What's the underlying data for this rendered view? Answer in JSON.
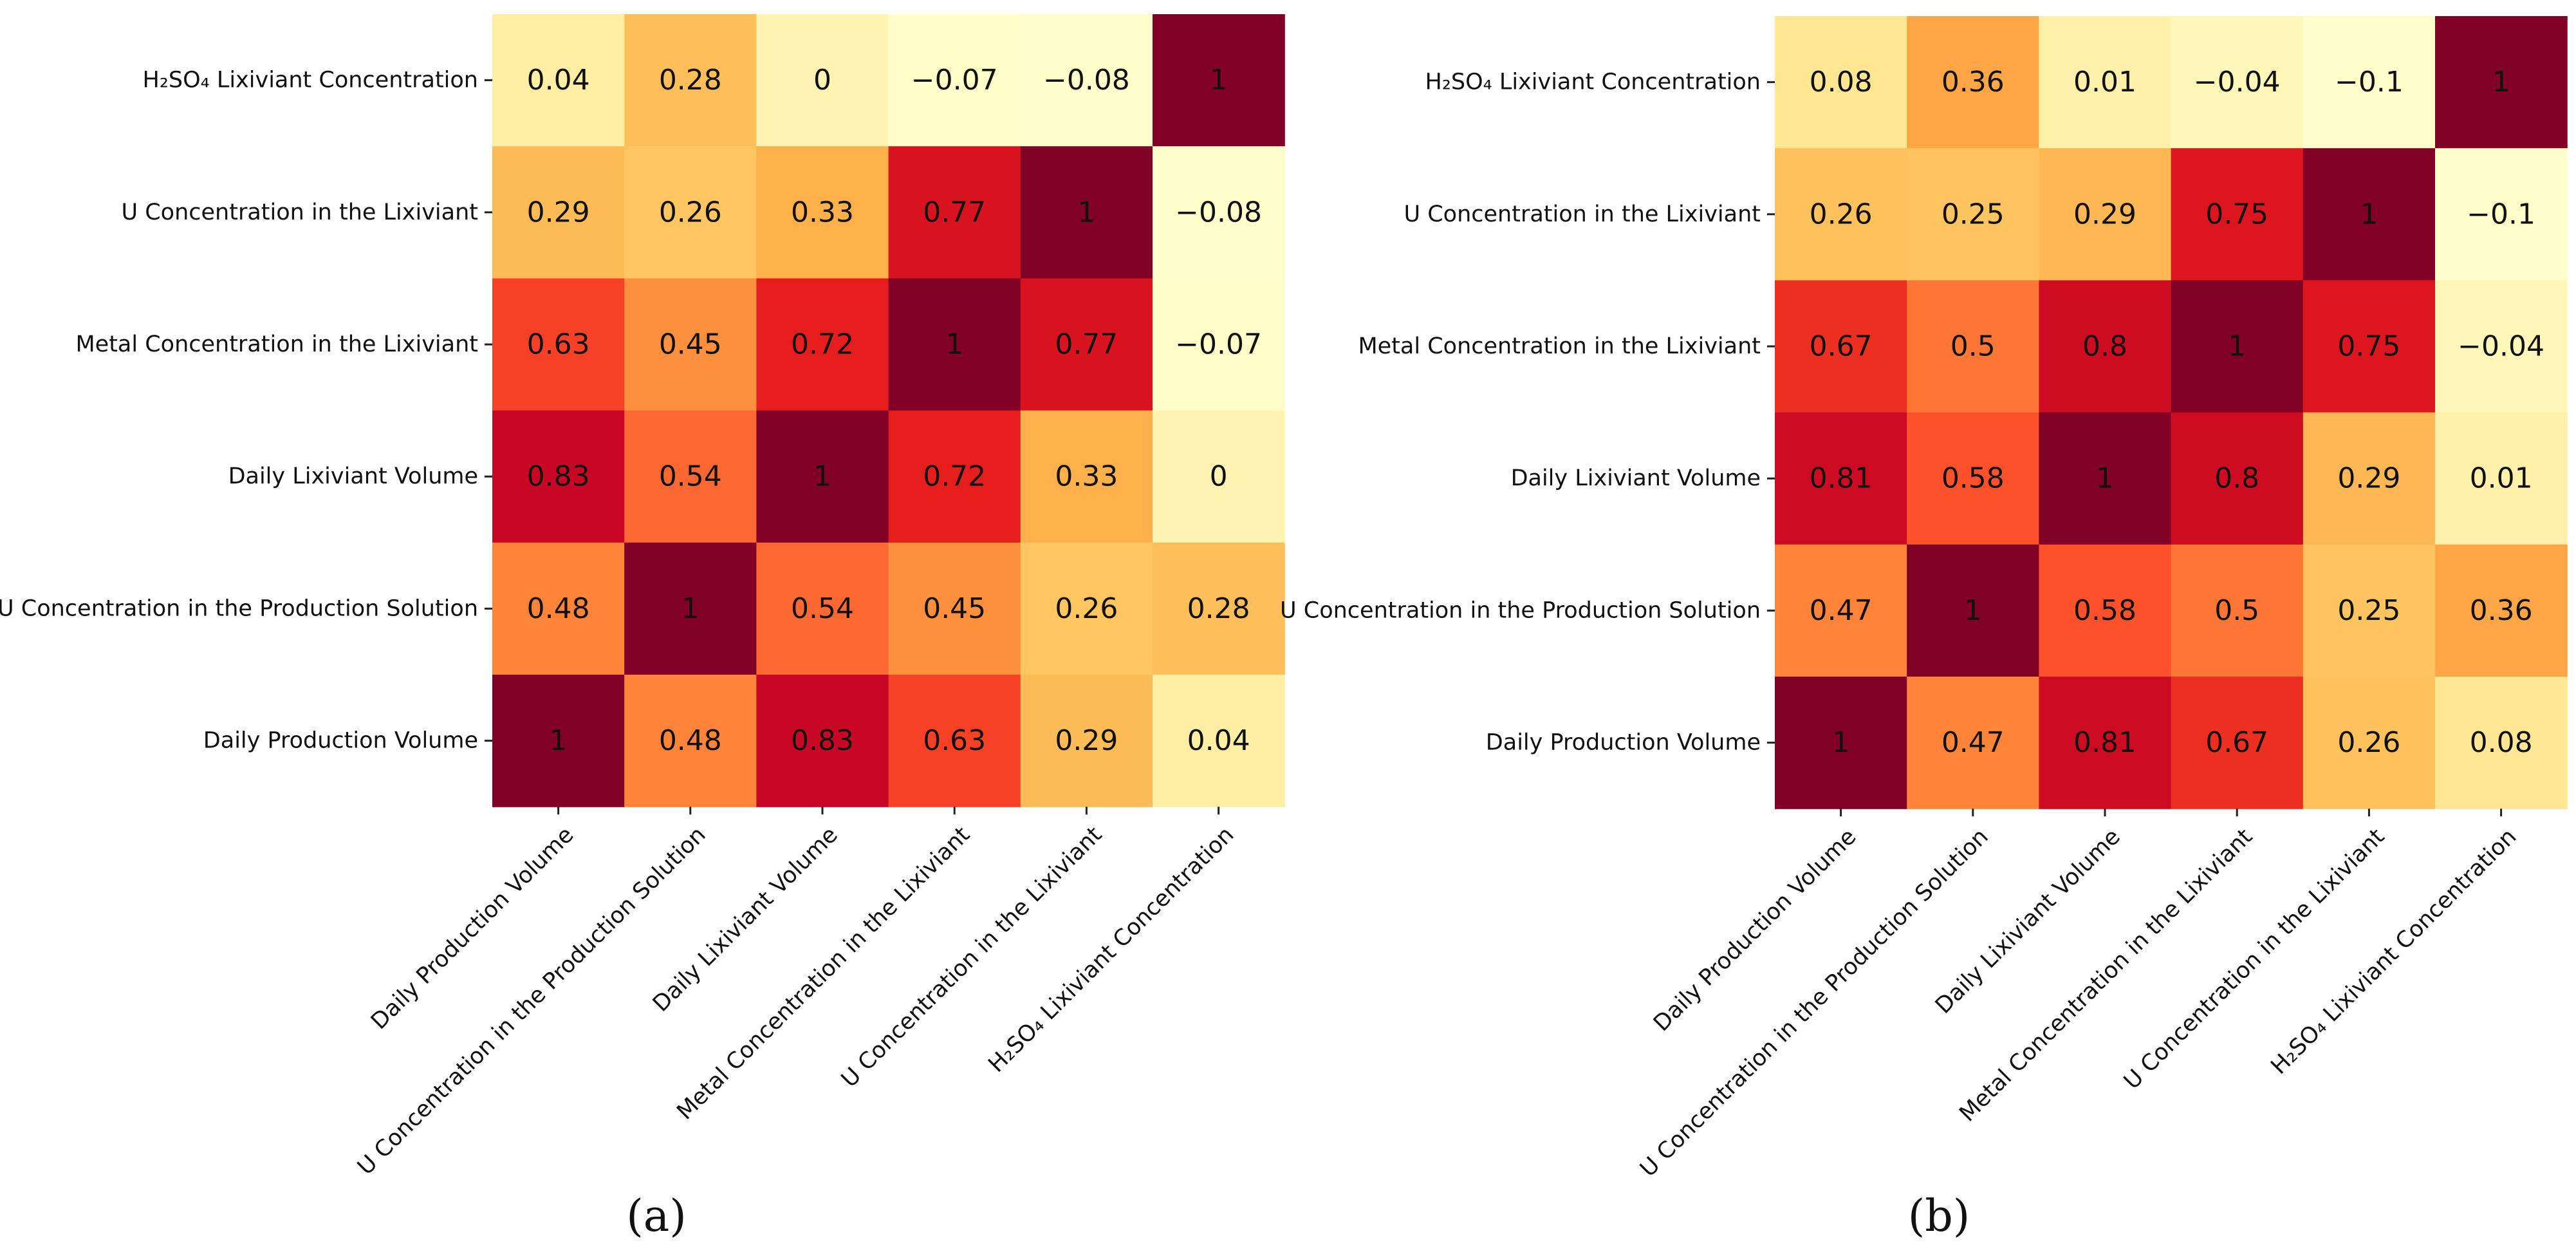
{
  "chart_data": [
    {
      "type": "heatmap",
      "panel_label": "(a)",
      "rows": [
        "H₂SO₄ Lixiviant Concentration",
        "U Concentration in the Lixiviant",
        "Metal Concentration in the Lixiviant",
        "Daily Lixiviant Volume",
        "U Concentration in the Production Solution",
        "Daily Production Volume"
      ],
      "columns": [
        "Daily Production Volume",
        "U Concentration in the Production Solution",
        "Daily Lixiviant Volume",
        "Metal Concentration in the Lixiviant",
        "U Concentration in the Lixiviant",
        "H₂SO₄ Lixiviant Concentration"
      ],
      "values": [
        [
          0.04,
          0.28,
          0,
          -0.07,
          -0.08,
          1
        ],
        [
          0.29,
          0.26,
          0.33,
          0.77,
          1,
          -0.08
        ],
        [
          0.63,
          0.45,
          0.72,
          1,
          0.77,
          -0.07
        ],
        [
          0.83,
          0.54,
          1,
          0.72,
          0.33,
          0
        ],
        [
          0.48,
          1,
          0.54,
          0.45,
          0.26,
          0.28
        ],
        [
          1,
          0.48,
          0.83,
          0.63,
          0.29,
          0.04
        ]
      ],
      "value_labels": [
        [
          "0.04",
          "0.28",
          "0",
          "−0.07",
          "−0.08",
          "1"
        ],
        [
          "0.29",
          "0.26",
          "0.33",
          "0.77",
          "1",
          "−0.08"
        ],
        [
          "0.63",
          "0.45",
          "0.72",
          "1",
          "0.77",
          "−0.07"
        ],
        [
          "0.83",
          "0.54",
          "1",
          "0.72",
          "0.33",
          "0"
        ],
        [
          "0.48",
          "1",
          "0.54",
          "0.45",
          "0.26",
          "0.28"
        ],
        [
          "1",
          "0.48",
          "0.83",
          "0.63",
          "0.29",
          "0.04"
        ]
      ],
      "colormap": "YlOrRd",
      "vmin": -0.08,
      "vmax": 1,
      "colorbar": false
    },
    {
      "type": "heatmap",
      "panel_label": "(b)",
      "rows": [
        "H₂SO₄ Lixiviant Concentration",
        "U Concentration in the Lixiviant",
        "Metal Concentration in the Lixiviant",
        "Daily Lixiviant Volume",
        "U Concentration in the Production Solution",
        "Daily Production Volume"
      ],
      "columns": [
        "Daily Production Volume",
        "U Concentration in the Production Solution",
        "Daily Lixiviant Volume",
        "Metal Concentration in the Lixiviant",
        "U Concentration in the Lixiviant",
        "H₂SO₄ Lixiviant Concentration"
      ],
      "values": [
        [
          0.08,
          0.36,
          0.01,
          -0.04,
          -0.1,
          1
        ],
        [
          0.26,
          0.25,
          0.29,
          0.75,
          1,
          -0.1
        ],
        [
          0.67,
          0.5,
          0.8,
          1,
          0.75,
          -0.04
        ],
        [
          0.81,
          0.58,
          1,
          0.8,
          0.29,
          0.01
        ],
        [
          0.47,
          1,
          0.58,
          0.5,
          0.25,
          0.36
        ],
        [
          1,
          0.47,
          0.81,
          0.67,
          0.26,
          0.08
        ]
      ],
      "value_labels": [
        [
          "0.08",
          "0.36",
          "0.01",
          "−0.04",
          "−0.1",
          "1"
        ],
        [
          "0.26",
          "0.25",
          "0.29",
          "0.75",
          "1",
          "−0.1"
        ],
        [
          "0.67",
          "0.5",
          "0.8",
          "1",
          "0.75",
          "−0.04"
        ],
        [
          "0.81",
          "0.58",
          "1",
          "0.8",
          "0.29",
          "0.01"
        ],
        [
          "0.47",
          "1",
          "0.58",
          "0.5",
          "0.25",
          "0.36"
        ],
        [
          "1",
          "0.47",
          "0.81",
          "0.67",
          "0.26",
          "0.08"
        ]
      ],
      "colormap": "YlOrRd",
      "vmin": -0.1,
      "vmax": 1,
      "colorbar": false
    }
  ]
}
